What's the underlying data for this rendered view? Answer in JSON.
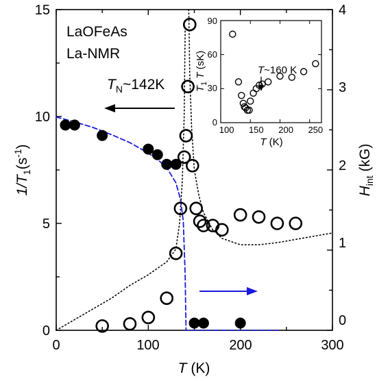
{
  "chart_data": [
    {
      "type": "scatter",
      "title_lines": [
        "LaOFeAs",
        "La-NMR"
      ],
      "x_axis": {
        "label_italic": "T",
        "label_rest": " (K)",
        "range": [
          0,
          300
        ],
        "ticks": [
          "0",
          "100",
          "200",
          "300"
        ]
      },
      "y_left": {
        "label_italic": "1/T",
        "label_sub": "1",
        "label_rest": "(s",
        "label_sup": "-1",
        "label_end": ")",
        "range": [
          0,
          15
        ],
        "ticks": [
          "0",
          "5",
          "10",
          "15"
        ]
      },
      "y_right": {
        "label_italic": "H",
        "label_sub": "int",
        "label_rest": " (kG)",
        "range": [
          0,
          4
        ],
        "ticks": [
          "0",
          "1",
          "2",
          "3",
          "4"
        ]
      },
      "annotation_tn": {
        "italic": "T",
        "sub": "N",
        "rest": "~142K"
      },
      "colors": {
        "filled": "#000000",
        "dashed_fit": "#1a1adb",
        "right_arrow": "#1a1adb",
        "dotted": "#000000"
      },
      "series": [
        {
          "marker": "open-circle",
          "axis": "left",
          "x": [
            50,
            80,
            100,
            120,
            130,
            135,
            139,
            141,
            143,
            145,
            148,
            152,
            156,
            160,
            170,
            180,
            200,
            220,
            240,
            260
          ],
          "y": [
            0.2,
            0.3,
            0.6,
            1.5,
            3.6,
            5.7,
            8.1,
            9.1,
            11.4,
            14.3,
            7.7,
            5.7,
            5.1,
            4.9,
            4.9,
            4.7,
            5.4,
            5.3,
            5.0,
            5.0
          ]
        },
        {
          "marker": "filled-circle",
          "axis": "right",
          "x": [
            10,
            20,
            50,
            100,
            110,
            120,
            130,
            150,
            160,
            200
          ],
          "y": [
            2.56,
            2.56,
            2.43,
            2.26,
            2.19,
            2.07,
            2.07,
            0.09,
            0.09,
            0.09
          ]
        }
      ],
      "fit_lines": [
        {
          "style": "blue-dashed",
          "axis": "right",
          "x": [
            0,
            20,
            40,
            60,
            80,
            100,
            110,
            120,
            130,
            135,
            138,
            140,
            141,
            142,
            145,
            160,
            180,
            200,
            220,
            240
          ],
          "y": [
            2.66,
            2.6,
            2.53,
            2.44,
            2.34,
            2.21,
            2.13,
            2.03,
            1.84,
            1.63,
            1.36,
            0.7,
            0.0,
            0.0,
            0.0,
            0.0,
            0.0,
            0.0,
            0.0,
            0.0
          ]
        },
        {
          "style": "black-dotted-lower",
          "axis": "left",
          "x": [
            0,
            20,
            40,
            60,
            80,
            100,
            110,
            120,
            125,
            130,
            134,
            137,
            139,
            140
          ],
          "y": [
            0.0,
            0.5,
            1.0,
            1.5,
            2.1,
            2.6,
            2.9,
            3.2,
            3.5,
            3.8,
            5.0,
            7.0,
            10.0,
            14.0
          ]
        },
        {
          "style": "black-dotted-upper",
          "axis": "left",
          "x": [
            144,
            145,
            147,
            150,
            155,
            160,
            170,
            180,
            200,
            220,
            240,
            260,
            280,
            300
          ],
          "y": [
            15.0,
            12.0,
            9.5,
            7.5,
            6.3,
            5.5,
            4.7,
            4.3,
            4.0,
            4.0,
            4.1,
            4.25,
            4.4,
            4.55
          ]
        }
      ]
    },
    {
      "type": "scatter",
      "title": "",
      "x_axis": {
        "label_italic": "T",
        "label_rest": " (K)",
        "range": [
          100,
          270
        ],
        "ticks": [
          "100",
          "150",
          "200",
          "250"
        ]
      },
      "y_axis": {
        "label_italic_a": "T",
        "label_sub": "1",
        "label_italic_b": "T",
        "label_rest": " (sK)",
        "range": [
          0,
          90
        ],
        "ticks": [
          "0",
          "30",
          "60",
          "90"
        ]
      },
      "annotation": {
        "italic": "T",
        "rest": "~160 K"
      },
      "series": [
        {
          "marker": "open-circle",
          "x": [
            120,
            130,
            135,
            138,
            140,
            142,
            145,
            148,
            150,
            155,
            160,
            165,
            170,
            180,
            200,
            220,
            240,
            260
          ],
          "y": [
            78,
            36,
            24,
            17,
            14,
            13,
            11,
            11,
            19,
            26,
            30,
            33,
            34,
            36,
            41,
            40,
            45,
            52
          ]
        }
      ]
    }
  ]
}
